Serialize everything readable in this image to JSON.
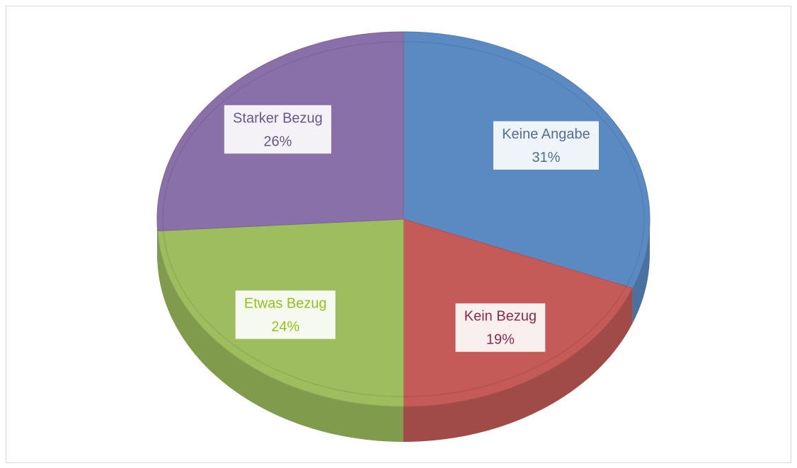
{
  "chart_data": {
    "type": "pie",
    "categories": [
      "Keine Angabe",
      "Kein Bezug",
      "Etwas Bezug",
      "Starker Bezug"
    ],
    "values": [
      31,
      19,
      24,
      26
    ],
    "value_labels": [
      "31%",
      "19%",
      "24%",
      "26%"
    ],
    "colors": [
      "#5b8ac3",
      "#c45b58",
      "#9dbd5e",
      "#8a70a8"
    ],
    "label_colors": [
      "#4f6f9c",
      "#8e2a4e",
      "#92c21c",
      "#66588a"
    ],
    "start_angle": 0,
    "direction": "clockwise",
    "three_d": true
  }
}
